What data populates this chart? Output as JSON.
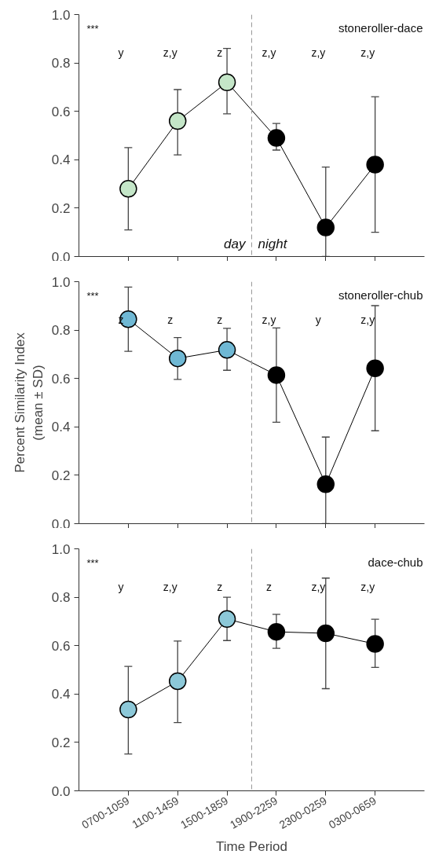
{
  "chart_data": [
    {
      "type": "line",
      "title": "stoneroller-dace",
      "categories": [
        null,
        null,
        null,
        null,
        null,
        null
      ],
      "ylim": [
        0,
        1
      ],
      "yticks": [
        {
          "value": 0,
          "label": "0.0"
        },
        {
          "value": 0.2,
          "label": "0.2"
        },
        {
          "value": 0.4,
          "label": "0.4"
        },
        {
          "value": 0.6,
          "label": "0.6"
        },
        {
          "value": 0.8,
          "label": "0.8"
        },
        {
          "value": 1,
          "label": "1.0"
        }
      ],
      "grid": false,
      "marker": "circle",
      "line_style": "solid",
      "series": [
        {
          "color": "#000000",
          "colors": [
            "#c4e6c8",
            "#c4e6c8",
            "#c4e6c8",
            "#000000",
            "#000000",
            "#000000"
          ],
          "values": [
            0.28,
            0.56,
            0.72,
            0.49,
            0.12,
            0.38
          ],
          "errors": [
            [
              0.11,
              0.45
            ],
            [
              0.42,
              0.69
            ],
            [
              0.59,
              0.86
            ],
            [
              0.44,
              0.55
            ],
            [
              0,
              0.37
            ],
            [
              0.1,
              0.66
            ]
          ]
        }
      ],
      "annotations": [
        "***",
        "y",
        "z,y",
        "z",
        "z,y",
        "z,y",
        "z,y",
        "day",
        "night"
      ]
    },
    {
      "type": "line",
      "title": "stoneroller-chub",
      "ylabel": "Percent Similarity Index\n(mean ± SD)",
      "categories": [
        null,
        null,
        null,
        null,
        null,
        null
      ],
      "ylim": [
        0,
        1
      ],
      "yticks": [
        {
          "value": 0,
          "label": "0.0"
        },
        {
          "value": 0.2,
          "label": "0.2"
        },
        {
          "value": 0.4,
          "label": "0.4"
        },
        {
          "value": 0.6,
          "label": "0.6"
        },
        {
          "value": 0.8,
          "label": "0.8"
        },
        {
          "value": 1,
          "label": "1.0"
        }
      ],
      "grid": false,
      "marker": "circle",
      "line_style": "solid",
      "series": [
        {
          "color": "#000000",
          "colors": [
            "#6fb8d4",
            "#6fb8d4",
            "#6fb8d4",
            "#000000",
            "#000000",
            "#000000"
          ],
          "values": [
            0.845,
            0.683,
            0.718,
            0.614,
            0.163,
            0.642
          ],
          "errors": [
            [
              0.712,
              0.978
            ],
            [
              0.596,
              0.769
            ],
            [
              0.634,
              0.807
            ],
            [
              0.419,
              0.809
            ],
            [
              0,
              0.358
            ],
            [
              0.384,
              0.901
            ]
          ]
        }
      ],
      "annotations": [
        "***",
        "z",
        "z",
        "z",
        "z,y",
        "y",
        "z,y"
      ]
    },
    {
      "type": "line",
      "title": "dace-chub",
      "xlabel": "Time Period",
      "categories": [
        "0700-1059",
        "1100-1459",
        "1500-1859",
        "1900-2259",
        "2300-0259",
        "0300-0659"
      ],
      "ylim": [
        0,
        1
      ],
      "yticks": [
        {
          "value": 0,
          "label": "0.0"
        },
        {
          "value": 0.2,
          "label": "0.2"
        },
        {
          "value": 0.4,
          "label": "0.4"
        },
        {
          "value": 0.6,
          "label": "0.6"
        },
        {
          "value": 0.8,
          "label": "0.8"
        },
        {
          "value": 1,
          "label": "1.0"
        }
      ],
      "grid": false,
      "marker": "circle",
      "line_style": "solid",
      "series": [
        {
          "color": "#000000",
          "colors": [
            "#8cc8d8",
            "#8cc8d8",
            "#8cc8d8",
            "#000000",
            "#000000",
            "#000000"
          ],
          "values": [
            0.336,
            0.453,
            0.71,
            0.657,
            0.651,
            0.607
          ],
          "errors": [
            [
              0.152,
              0.514
            ],
            [
              0.282,
              0.619
            ],
            [
              0.621,
              0.8
            ],
            [
              0.589,
              0.729
            ],
            [
              0.422,
              0.879
            ],
            [
              0.51,
              0.709
            ]
          ]
        }
      ],
      "annotations": [
        "***",
        "y",
        "z,y",
        "z",
        "z",
        "z,y",
        "z,y"
      ]
    }
  ]
}
